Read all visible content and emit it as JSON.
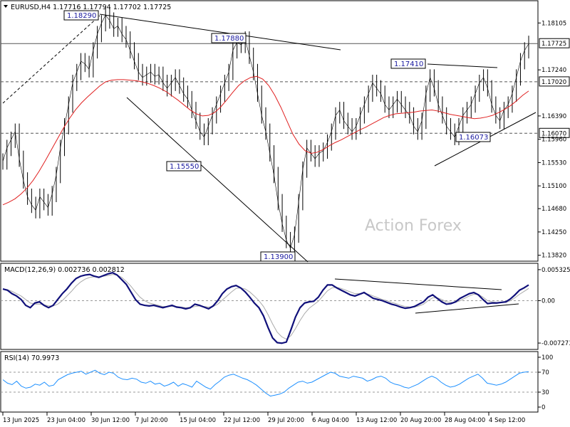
{
  "chart_data": [
    {
      "type": "line",
      "panel": "price",
      "title": "EURUSD,H4  1.17716 1.17794 1.17702 1.17725",
      "watermark": "Action Forex",
      "ylim": [
        1.1375,
        1.1845
      ],
      "y_ticks": [
        "1.18105",
        "1.17725",
        "1.17240",
        "1.17020",
        "1.16390",
        "1.16070",
        "1.15960",
        "1.15530",
        "1.15100",
        "1.14680",
        "1.14250",
        "1.13820"
      ],
      "x_ticks": [
        "13 Jun 2025",
        "23 Jun 04:00",
        "30 Jun 12:00",
        "7 Jul 20:00",
        "15 Jul 04:00",
        "22 Jul 12:00",
        "29 Jul 20:00",
        "6 Aug 04:00",
        "13 Aug 12:00",
        "20 Aug 20:00",
        "28 Aug 04:00",
        "4 Sep 12:00"
      ],
      "horizontal_levels": [
        {
          "label": "1.17725",
          "value": 1.17725,
          "style": "solid"
        },
        {
          "label": "1.17020",
          "value": 1.1702,
          "style": "dashed"
        },
        {
          "label": "1.16070",
          "value": 1.1607,
          "style": "dashed"
        }
      ],
      "annotations": [
        "1.18290",
        "1.17880",
        "1.17410",
        "1.15550",
        "1.13900",
        "1.16073"
      ],
      "series": [
        {
          "values": [
            1.1555,
            1.158,
            1.1595,
            1.161,
            1.156,
            1.152,
            1.149,
            1.1475,
            1.1465,
            1.149,
            1.148,
            1.147,
            1.1495,
            1.153,
            1.158,
            1.162,
            1.166,
            1.17,
            1.172,
            1.174,
            1.1735,
            1.1725,
            1.176,
            1.179,
            1.181,
            1.1825,
            1.1815,
            1.18,
            1.1805,
            1.179,
            1.178,
            1.176,
            1.174,
            1.172,
            1.171,
            1.1715,
            1.172,
            1.1712,
            1.1715,
            1.17,
            1.169,
            1.17,
            1.171,
            1.1695,
            1.168,
            1.167,
            1.165,
            1.163,
            1.161,
            1.16,
            1.162,
            1.164,
            1.166,
            1.168,
            1.17,
            1.172,
            1.176,
            1.1775,
            1.177,
            1.178,
            1.175,
            1.172,
            1.168,
            1.164,
            1.161,
            1.157,
            1.153,
            1.148,
            1.144,
            1.141,
            1.1395,
            1.142,
            1.148,
            1.154,
            1.158,
            1.157,
            1.156,
            1.157,
            1.1575,
            1.159,
            1.161,
            1.164,
            1.165,
            1.163,
            1.162,
            1.161,
            1.162,
            1.164,
            1.166,
            1.168,
            1.17,
            1.169,
            1.168,
            1.166,
            1.165,
            1.166,
            1.167,
            1.166,
            1.165,
            1.164,
            1.162,
            1.161,
            1.163,
            1.168,
            1.171,
            1.169,
            1.166,
            1.164,
            1.162,
            1.161,
            1.16,
            1.162,
            1.164,
            1.165,
            1.166,
            1.168,
            1.17,
            1.171,
            1.169,
            1.166,
            1.164,
            1.163,
            1.165,
            1.166,
            1.168,
            1.171,
            1.174,
            1.176,
            1.1772
          ]
        },
        {
          "values": [
            1.1475,
            1.148,
            1.1486,
            1.1495,
            1.1506,
            1.152,
            1.1537,
            1.1556,
            1.1576,
            1.1596,
            1.1616,
            1.1634,
            1.165,
            1.1663,
            1.1674,
            1.1684,
            1.1694,
            1.1702,
            1.1705,
            1.1706,
            1.1706,
            1.1705,
            1.1704,
            1.1702,
            1.1699,
            1.1695,
            1.169,
            1.1684,
            1.1676,
            1.1668,
            1.1659,
            1.165,
            1.1643,
            1.1639,
            1.164,
            1.1645,
            1.1655,
            1.1668,
            1.1682,
            1.1695,
            1.1704,
            1.171,
            1.1712,
            1.1707,
            1.1695,
            1.1677,
            1.1655,
            1.163,
            1.1605,
            1.1587,
            1.1575,
            1.157,
            1.1572,
            1.1577,
            1.1584,
            1.159,
            1.1595,
            1.1601,
            1.1607,
            1.1613,
            1.1618,
            1.1624,
            1.163,
            1.1636,
            1.164,
            1.1643,
            1.1644,
            1.1645,
            1.1646,
            1.1648,
            1.1649,
            1.165,
            1.1648,
            1.1645,
            1.1642,
            1.164,
            1.1638,
            1.1636,
            1.1634,
            1.1635,
            1.1637,
            1.164,
            1.1645,
            1.1651,
            1.1658,
            1.1667,
            1.1677,
            1.1685
          ]
        }
      ]
    },
    {
      "type": "line",
      "panel": "macd",
      "title": "MACD(12,26,9) 0.002736 0.002812",
      "y_ticks": [
        "0.005325",
        "0.00",
        "-0.007273"
      ],
      "ylim": [
        -0.008,
        0.0058
      ],
      "series": [
        {
          "values": [
            0.002,
            0.0018,
            0.0012,
            0.0008,
            0.0002,
            -0.0008,
            -0.0012,
            -0.0004,
            -0.0002,
            -0.0008,
            -0.0012,
            -0.0008,
            0.0002,
            0.0012,
            0.002,
            0.003,
            0.0038,
            0.0042,
            0.0044,
            0.0045,
            0.0042,
            0.004,
            0.0043,
            0.0046,
            0.0048,
            0.0044,
            0.0036,
            0.0028,
            0.0015,
            0.0002,
            -0.0006,
            -0.0008,
            -0.0009,
            -0.0008,
            -0.001,
            -0.0012,
            -0.001,
            -0.0008,
            -0.0011,
            -0.0012,
            -0.0014,
            -0.0012,
            -0.0006,
            -0.0008,
            -0.0011,
            -0.0014,
            -0.0009,
            0.0,
            0.0012,
            0.002,
            0.0024,
            0.0026,
            0.0022,
            0.0015,
            0.0006,
            -0.0004,
            -0.0012,
            -0.0026,
            -0.0046,
            -0.0064,
            -0.0072,
            -0.0073,
            -0.0071,
            -0.005,
            -0.0028,
            -0.0012,
            -0.0004,
            -0.0002,
            -0.0001,
            0.0006,
            0.0018,
            0.0027,
            0.0027,
            0.0022,
            0.0018,
            0.0014,
            0.001,
            0.0008,
            0.0011,
            0.0014,
            0.0009,
            0.0004,
            0.0002,
            0.0,
            -0.0003,
            -0.0006,
            -0.0008,
            -0.0011,
            -0.0013,
            -0.0012,
            -0.001,
            -0.0006,
            -0.0002,
            0.0006,
            0.001,
            0.0004,
            -0.0002,
            -0.0006,
            -0.0005,
            -0.0002,
            0.0004,
            0.0008,
            0.0012,
            0.0014,
            0.001,
            0.0002,
            -0.0005,
            -0.0004,
            -0.0004,
            -0.0003,
            -0.0002,
            0.0003,
            0.001,
            0.0018,
            0.0022,
            0.0027
          ]
        },
        {
          "values": [
            0.002,
            0.0019,
            0.0016,
            0.0012,
            0.0008,
            0.0002,
            -0.0004,
            -0.0006,
            -0.0006,
            -0.0007,
            -0.0009,
            -0.0009,
            -0.0006,
            0.0,
            0.0008,
            0.0016,
            0.0025,
            0.0032,
            0.0037,
            0.004,
            0.0041,
            0.0041,
            0.0042,
            0.0043,
            0.0045,
            0.0044,
            0.004,
            0.0033,
            0.0025,
            0.0015,
            0.0006,
            0.0,
            -0.0004,
            -0.0006,
            -0.0008,
            -0.001,
            -0.001,
            -0.001,
            -0.001,
            -0.0011,
            -0.0012,
            -0.0012,
            -0.001,
            -0.0009,
            -0.001,
            -0.0011,
            -0.001,
            -0.0006,
            0.0001,
            0.0008,
            0.0015,
            0.0021,
            0.0022,
            0.002,
            0.0015,
            0.0008,
            0.0,
            -0.001,
            -0.0024,
            -0.004,
            -0.0054,
            -0.0062,
            -0.0066,
            -0.006,
            -0.0048,
            -0.0034,
            -0.0022,
            -0.0013,
            -0.0007,
            -0.0001,
            0.0008,
            0.0017,
            0.0022,
            0.0023,
            0.0021,
            0.0018,
            0.0015,
            0.0012,
            0.0012,
            0.0013,
            0.0011,
            0.0008,
            0.0005,
            0.0002,
            0.0,
            -0.0003,
            -0.0005,
            -0.0008,
            -0.001,
            -0.0011,
            -0.0011,
            -0.0009,
            -0.0006,
            0.0,
            0.0005,
            0.0005,
            0.0002,
            -0.0002,
            -0.0003,
            -0.0003,
            0.0,
            0.0004,
            0.0008,
            0.0011,
            0.0011,
            0.0006,
            0.0,
            -0.0002,
            -0.0003,
            -0.0003,
            -0.0003,
            0.0,
            0.0005,
            0.0011,
            0.0016,
            0.0021
          ]
        }
      ]
    },
    {
      "type": "line",
      "panel": "rsi",
      "title": "RSI(14) 70.9973",
      "y_ticks": [
        "100",
        "70",
        "30",
        "0"
      ],
      "ylim": [
        0,
        100
      ],
      "series": [
        {
          "values": [
            55,
            48,
            45,
            52,
            42,
            38,
            40,
            46,
            44,
            50,
            42,
            44,
            55,
            60,
            65,
            68,
            70,
            72,
            66,
            70,
            74,
            68,
            65,
            70,
            68,
            60,
            56,
            55,
            58,
            56,
            50,
            48,
            52,
            46,
            48,
            42,
            45,
            50,
            42,
            47,
            44,
            40,
            52,
            46,
            40,
            36,
            45,
            52,
            60,
            64,
            66,
            62,
            58,
            55,
            50,
            44,
            36,
            28,
            22,
            24,
            26,
            30,
            38,
            44,
            50,
            52,
            48,
            50,
            55,
            60,
            65,
            70,
            68,
            62,
            60,
            58,
            62,
            60,
            58,
            52,
            55,
            60,
            62,
            58,
            50,
            46,
            44,
            40,
            38,
            42,
            46,
            52,
            58,
            62,
            58,
            50,
            44,
            40,
            42,
            46,
            52,
            58,
            62,
            66,
            58,
            48,
            46,
            44,
            46,
            50,
            56,
            62,
            68,
            70,
            71
          ]
        }
      ]
    }
  ]
}
